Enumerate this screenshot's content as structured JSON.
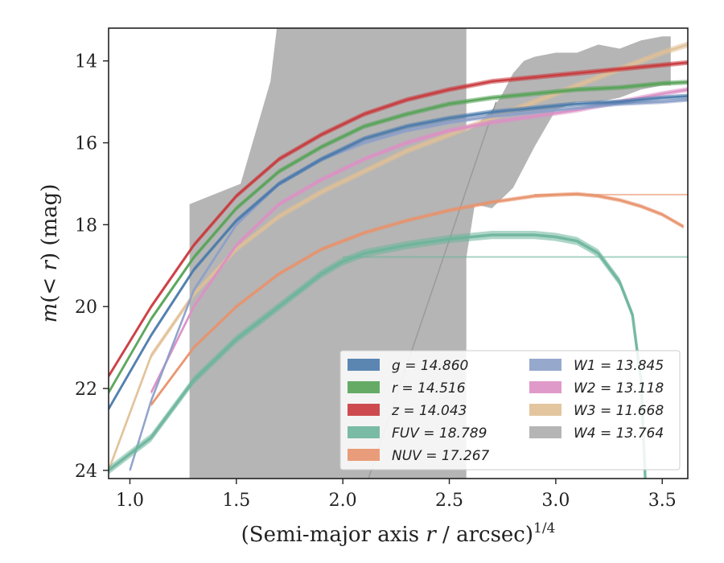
{
  "chart_data": {
    "type": "line",
    "title": "",
    "xlabel": "(Semi-major axis r / arcsec)",
    "xlabel_parts": {
      "open": "(Semi-major axis ",
      "var": "r",
      "rest": " / arcsec)",
      "sup": "1/4"
    },
    "ylabel": "m(< r) (mag)",
    "ylabel_parts": {
      "var": "m",
      "middle": "(< ",
      "var2": "r",
      "rest": ") (mag)"
    },
    "xlim": [
      0.9,
      3.62
    ],
    "ylim": [
      13.2,
      24.2
    ],
    "y_inverted": true,
    "xticks": [
      1.0,
      1.5,
      2.0,
      2.5,
      3.0,
      3.5
    ],
    "xtick_labels": [
      "1.0",
      "1.5",
      "2.0",
      "2.5",
      "3.0",
      "3.5"
    ],
    "yticks": [
      14,
      16,
      18,
      20,
      22,
      24
    ],
    "ytick_labels": [
      "14",
      "16",
      "18",
      "20",
      "22",
      "24"
    ],
    "grid": false,
    "legend_position": "lower-right",
    "series": [
      {
        "name": "g",
        "legend": "g = 14.860",
        "color": "#4a7aab",
        "x": [
          0.9,
          1.1,
          1.3,
          1.5,
          1.7,
          1.9,
          2.1,
          2.3,
          2.5,
          2.7,
          2.9,
          3.1,
          3.3,
          3.5,
          3.62
        ],
        "y": [
          22.5,
          20.7,
          19.1,
          17.9,
          17.0,
          16.4,
          15.9,
          15.6,
          15.4,
          15.25,
          15.15,
          15.05,
          15.0,
          14.9,
          14.86
        ],
        "band": 0.12
      },
      {
        "name": "r",
        "legend": "r = 14.516",
        "color": "#55a357",
        "x": [
          0.9,
          1.1,
          1.3,
          1.5,
          1.7,
          1.9,
          2.1,
          2.3,
          2.5,
          2.7,
          2.9,
          3.1,
          3.3,
          3.5,
          3.62
        ],
        "y": [
          22.1,
          20.3,
          18.8,
          17.6,
          16.7,
          16.1,
          15.6,
          15.3,
          15.05,
          14.9,
          14.8,
          14.7,
          14.65,
          14.55,
          14.52
        ],
        "band": 0.12
      },
      {
        "name": "z",
        "legend": "z = 14.043",
        "color": "#c9393c",
        "x": [
          0.9,
          1.1,
          1.3,
          1.5,
          1.7,
          1.9,
          2.1,
          2.3,
          2.5,
          2.7,
          2.9,
          3.1,
          3.3,
          3.5,
          3.62
        ],
        "y": [
          21.7,
          20.0,
          18.5,
          17.3,
          16.4,
          15.8,
          15.3,
          14.95,
          14.7,
          14.5,
          14.4,
          14.3,
          14.2,
          14.1,
          14.04
        ],
        "band": 0.12
      },
      {
        "name": "FUV",
        "legend": "FUV = 18.789",
        "color": "#6cb59b",
        "x": [
          0.9,
          1.1,
          1.3,
          1.5,
          1.7,
          1.9,
          2.0,
          2.1,
          2.3,
          2.5,
          2.7,
          2.9,
          3.0,
          3.1,
          3.2,
          3.3,
          3.36,
          3.4,
          3.42
        ],
        "y": [
          24.0,
          23.2,
          21.8,
          20.8,
          20.0,
          19.2,
          18.9,
          18.7,
          18.5,
          18.35,
          18.25,
          18.25,
          18.3,
          18.4,
          18.7,
          19.4,
          20.2,
          21.8,
          24.2
        ],
        "band": 0.2
      },
      {
        "name": "NUV",
        "legend": "NUV = 17.267",
        "color": "#e8926b",
        "x": [
          1.1,
          1.3,
          1.5,
          1.7,
          1.9,
          2.1,
          2.3,
          2.5,
          2.7,
          2.9,
          3.0,
          3.1,
          3.2,
          3.3,
          3.4,
          3.5,
          3.6
        ],
        "y": [
          22.4,
          21.0,
          20.0,
          19.2,
          18.6,
          18.2,
          17.9,
          17.65,
          17.45,
          17.3,
          17.27,
          17.25,
          17.3,
          17.4,
          17.55,
          17.75,
          18.05
        ],
        "band": 0.1
      },
      {
        "name": "W1",
        "legend": "W1 = 13.845",
        "color": "#8c9fc8",
        "x": [
          1.0,
          1.1,
          1.3,
          1.5,
          1.7,
          1.9,
          2.1,
          2.3,
          2.5,
          2.7,
          2.9,
          3.1,
          3.3,
          3.5,
          3.62
        ],
        "y": [
          24.0,
          22.3,
          19.6,
          18.0,
          17.0,
          16.4,
          16.0,
          15.7,
          15.5,
          15.35,
          15.25,
          15.15,
          15.05,
          15.0,
          14.95
        ],
        "band": 0.1
      },
      {
        "name": "W2",
        "legend": "W2 = 13.118",
        "color": "#dd8fc4",
        "x": [
          1.1,
          1.3,
          1.5,
          1.7,
          1.9,
          2.1,
          2.3,
          2.5,
          2.7,
          2.9,
          3.1,
          3.3,
          3.5,
          3.62
        ],
        "y": [
          22.1,
          20.0,
          18.5,
          17.5,
          16.9,
          16.4,
          16.0,
          15.7,
          15.5,
          15.35,
          15.2,
          15.0,
          14.8,
          14.7
        ],
        "band": 0.12
      },
      {
        "name": "W3",
        "legend": "W3 = 11.668",
        "color": "#e0c096",
        "x": [
          0.9,
          1.1,
          1.3,
          1.5,
          1.7,
          1.9,
          2.1,
          2.3,
          2.5,
          2.7,
          2.9,
          3.1,
          3.3,
          3.5,
          3.62
        ],
        "y": [
          24.0,
          21.2,
          19.7,
          18.6,
          17.8,
          17.2,
          16.7,
          16.2,
          15.8,
          15.4,
          15.0,
          14.6,
          14.2,
          13.8,
          13.6
        ],
        "band": 0.15
      },
      {
        "name": "W4",
        "legend": "W4 = 13.764",
        "color": "#b5b5b5"
      }
    ],
    "w4_band": {
      "upper": {
        "x": [
          1.28,
          1.52,
          1.66,
          1.69,
          2.58,
          2.58,
          2.62,
          2.7,
          2.75,
          2.8,
          2.85,
          2.9,
          3.0,
          3.1,
          3.2,
          3.3,
          3.4,
          3.5,
          3.54
        ],
        "y": [
          17.5,
          17.0,
          14.5,
          13.2,
          13.2,
          15.7,
          15.6,
          15.2,
          14.8,
          14.3,
          14.0,
          13.9,
          13.8,
          13.8,
          13.6,
          13.7,
          13.5,
          13.4,
          13.4
        ]
      },
      "lower": {
        "x": [
          1.28,
          1.28,
          1.68,
          2.58,
          2.58,
          2.62,
          2.7,
          2.8,
          2.9,
          3.0,
          3.1,
          3.2,
          3.3,
          3.4,
          3.5,
          3.54
        ],
        "y": [
          24.2,
          24.2,
          24.2,
          24.2,
          18.8,
          17.5,
          17.6,
          17.1,
          16.1,
          15.2,
          15.0,
          15.0,
          14.9,
          14.7,
          14.6,
          14.6
        ]
      }
    },
    "legend_columns": [
      [
        "g = 14.860",
        "r = 14.516",
        "z = 14.043",
        "FUV = 18.789",
        "NUV = 17.267"
      ],
      [
        "W1 = 13.845",
        "W2 = 13.118",
        "W3 = 11.668",
        "W4 = 13.764"
      ]
    ]
  }
}
